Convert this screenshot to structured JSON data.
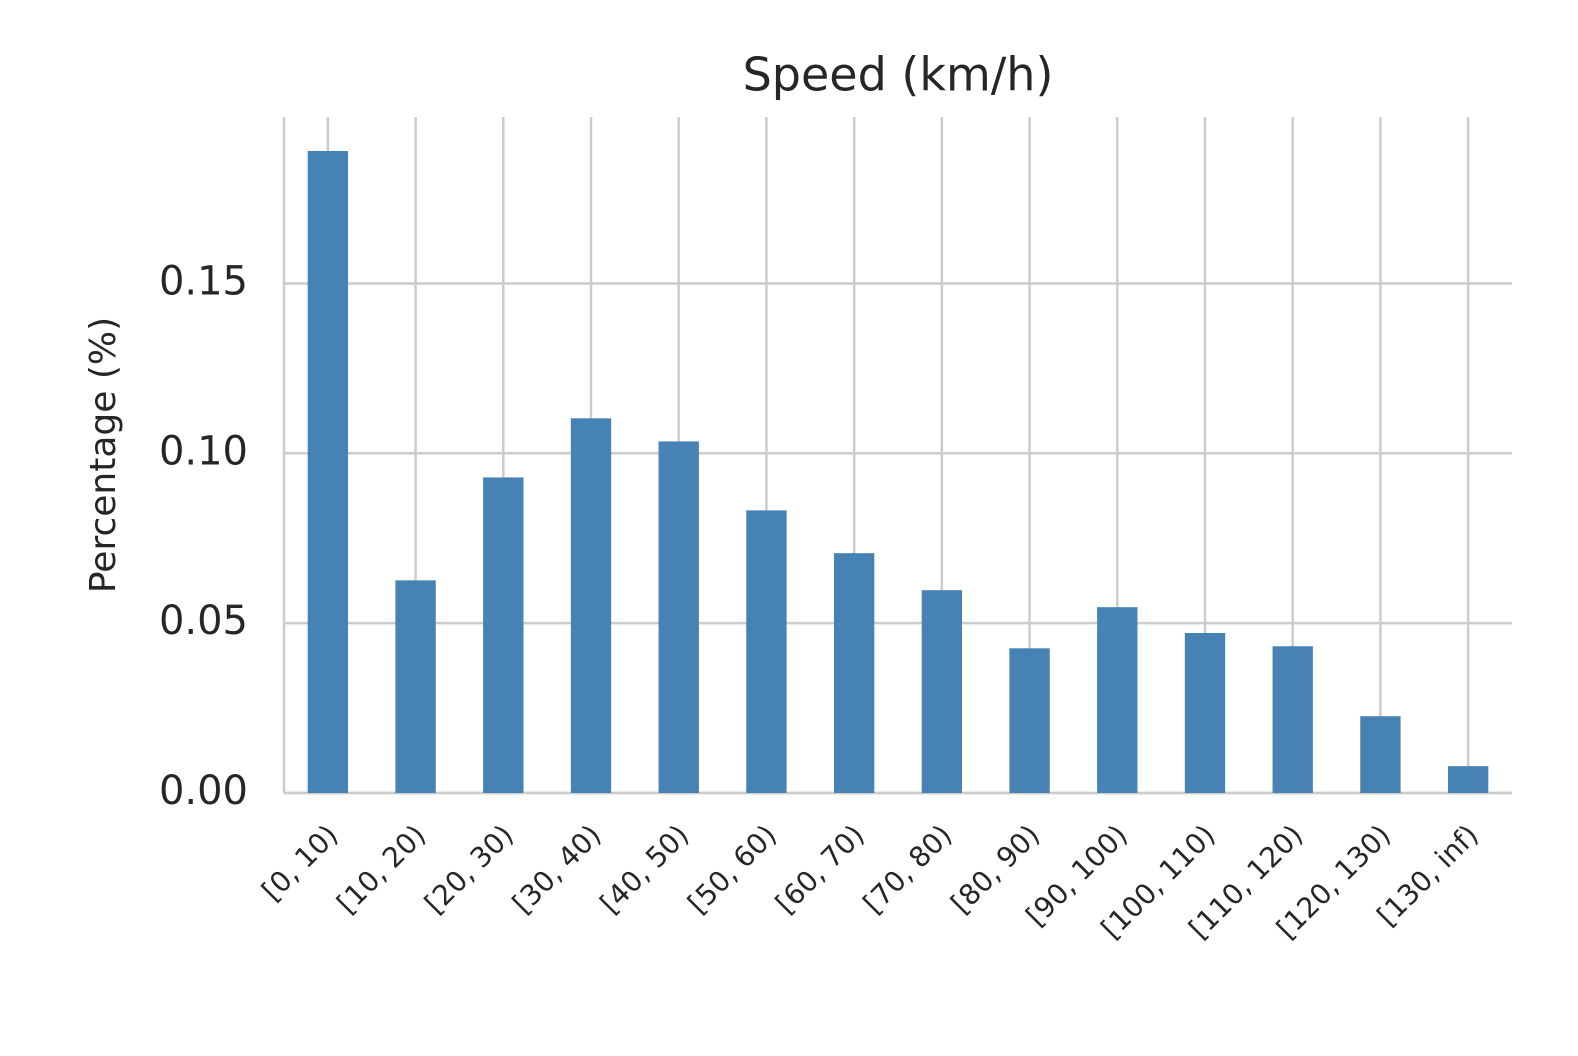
{
  "chart_data": {
    "type": "bar",
    "title": "Speed (km/h)",
    "y_label": "Percentage (%)",
    "categories": [
      "[0, 10)",
      "[10, 20)",
      "[20, 30)",
      "[30, 40)",
      "[40, 50)",
      "[50, 60)",
      "[60, 70)",
      "[70, 80)",
      "[80, 90)",
      "[90, 100)",
      "[100, 110)",
      "[110, 120)",
      "[120, 130)",
      "[130, inf)"
    ],
    "values": [
      0.189,
      0.0626,
      0.0929,
      0.1103,
      0.1035,
      0.0832,
      0.0706,
      0.0597,
      0.0426,
      0.0547,
      0.0471,
      0.0432,
      0.0226,
      0.0079
    ],
    "color": "#4682b4",
    "ylim": [
      0,
      0.199
    ],
    "yticks": [
      {
        "value": 0,
        "label": "0.00"
      },
      {
        "value": 0.05,
        "label": "0.05"
      },
      {
        "value": 0.1,
        "label": "0.10"
      },
      {
        "value": 0.15,
        "label": "0.15"
      }
    ],
    "grid": true
  }
}
